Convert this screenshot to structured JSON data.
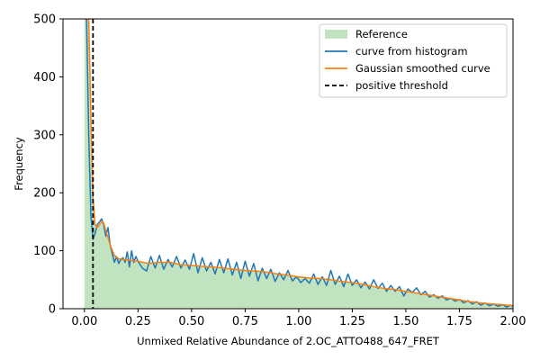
{
  "chart_data": {
    "type": "area",
    "xlabel": "Unmixed Relative Abundance of 2.OC_ATTO488_647_FRET",
    "ylabel": "Frequency",
    "xlim": [
      -0.1,
      2.0
    ],
    "ylim": [
      0,
      500
    ],
    "xticks": [
      0.0,
      0.25,
      0.5,
      0.75,
      1.0,
      1.25,
      1.5,
      1.75,
      2.0
    ],
    "xtick_labels": [
      "0.00",
      "0.25",
      "0.50",
      "0.75",
      "1.00",
      "1.25",
      "1.50",
      "1.75",
      "2.00"
    ],
    "yticks": [
      0,
      100,
      200,
      300,
      400,
      500
    ],
    "ytick_labels": [
      "0",
      "100",
      "200",
      "300",
      "400",
      "500"
    ],
    "grid": false,
    "legend_position": "top-right",
    "threshold": 0.04,
    "series": [
      {
        "name": "Reference",
        "kind": "area",
        "color": "#c2e3c0",
        "x": [
          0.0,
          0.01,
          0.02,
          0.03,
          0.04,
          0.05,
          0.06,
          0.07,
          0.08,
          0.09,
          0.1,
          0.12,
          0.14,
          0.16,
          0.18,
          0.2,
          0.22,
          0.25,
          0.3,
          0.35,
          0.4,
          0.45,
          0.5,
          0.55,
          0.6,
          0.65,
          0.7,
          0.75,
          0.8,
          0.85,
          0.9,
          0.95,
          1.0,
          1.05,
          1.1,
          1.15,
          1.2,
          1.25,
          1.3,
          1.35,
          1.4,
          1.45,
          1.5,
          1.55,
          1.6,
          1.65,
          1.7,
          1.75,
          1.8,
          1.85,
          1.9,
          1.95,
          2.0
        ],
        "y": [
          500,
          500,
          500,
          330,
          190,
          145,
          140,
          145,
          150,
          148,
          135,
          110,
          92,
          86,
          85,
          84,
          83,
          82,
          78,
          80,
          80,
          76,
          75,
          73,
          72,
          70,
          68,
          66,
          65,
          63,
          60,
          58,
          55,
          53,
          52,
          50,
          47,
          45,
          42,
          38,
          35,
          33,
          30,
          27,
          24,
          21,
          18,
          15,
          12,
          10,
          8,
          7,
          5
        ]
      },
      {
        "name": "curve from histogram",
        "kind": "line",
        "color": "#1f77b4",
        "x": [
          0.0,
          0.01,
          0.02,
          0.03,
          0.04,
          0.05,
          0.06,
          0.07,
          0.08,
          0.09,
          0.1,
          0.11,
          0.12,
          0.13,
          0.14,
          0.15,
          0.16,
          0.17,
          0.18,
          0.19,
          0.2,
          0.21,
          0.22,
          0.23,
          0.24,
          0.25,
          0.27,
          0.29,
          0.31,
          0.33,
          0.35,
          0.37,
          0.39,
          0.41,
          0.43,
          0.45,
          0.47,
          0.49,
          0.51,
          0.53,
          0.55,
          0.57,
          0.59,
          0.61,
          0.63,
          0.65,
          0.67,
          0.69,
          0.71,
          0.73,
          0.75,
          0.77,
          0.79,
          0.81,
          0.83,
          0.85,
          0.87,
          0.89,
          0.91,
          0.93,
          0.95,
          0.97,
          0.99,
          1.01,
          1.03,
          1.05,
          1.07,
          1.09,
          1.11,
          1.13,
          1.15,
          1.17,
          1.19,
          1.21,
          1.23,
          1.25,
          1.27,
          1.29,
          1.31,
          1.33,
          1.35,
          1.37,
          1.39,
          1.41,
          1.43,
          1.45,
          1.47,
          1.49,
          1.51,
          1.53,
          1.55,
          1.57,
          1.59,
          1.61,
          1.63,
          1.65,
          1.67,
          1.69,
          1.71,
          1.73,
          1.75,
          1.77,
          1.79,
          1.81,
          1.83,
          1.85,
          1.87,
          1.89,
          1.91,
          1.93,
          1.95,
          1.97,
          1.99,
          2.0
        ],
        "y": [
          500,
          500,
          300,
          160,
          120,
          130,
          145,
          150,
          155,
          145,
          125,
          140,
          110,
          95,
          80,
          90,
          78,
          85,
          88,
          80,
          98,
          72,
          100,
          80,
          90,
          82,
          70,
          65,
          90,
          70,
          92,
          68,
          85,
          72,
          90,
          70,
          84,
          68,
          95,
          62,
          88,
          65,
          80,
          60,
          85,
          62,
          86,
          58,
          80,
          52,
          82,
          56,
          78,
          48,
          70,
          52,
          68,
          47,
          62,
          50,
          66,
          48,
          55,
          45,
          52,
          44,
          60,
          42,
          55,
          40,
          66,
          42,
          56,
          38,
          60,
          40,
          50,
          36,
          46,
          34,
          50,
          35,
          44,
          30,
          40,
          30,
          38,
          22,
          34,
          28,
          36,
          24,
          30,
          20,
          24,
          18,
          22,
          15,
          18,
          13,
          16,
          10,
          14,
          8,
          12,
          6,
          10,
          5,
          8,
          4,
          7,
          3,
          6,
          3
        ]
      },
      {
        "name": "Gaussian smoothed curve",
        "kind": "line",
        "color": "#ff7f0e",
        "x": [
          0.0,
          0.01,
          0.02,
          0.03,
          0.04,
          0.05,
          0.06,
          0.07,
          0.08,
          0.09,
          0.1,
          0.12,
          0.14,
          0.16,
          0.18,
          0.2,
          0.22,
          0.25,
          0.3,
          0.35,
          0.4,
          0.45,
          0.5,
          0.55,
          0.6,
          0.65,
          0.7,
          0.75,
          0.8,
          0.85,
          0.9,
          0.95,
          1.0,
          1.05,
          1.1,
          1.15,
          1.2,
          1.25,
          1.3,
          1.35,
          1.4,
          1.45,
          1.5,
          1.55,
          1.6,
          1.65,
          1.7,
          1.75,
          1.8,
          1.85,
          1.9,
          1.95,
          2.0
        ],
        "y": [
          500,
          500,
          500,
          330,
          190,
          145,
          140,
          145,
          150,
          148,
          135,
          110,
          92,
          86,
          85,
          84,
          83,
          82,
          78,
          80,
          80,
          76,
          75,
          73,
          72,
          70,
          68,
          66,
          65,
          63,
          60,
          58,
          55,
          53,
          52,
          50,
          47,
          45,
          42,
          38,
          35,
          33,
          30,
          27,
          24,
          21,
          18,
          15,
          12,
          10,
          8,
          7,
          5
        ]
      },
      {
        "name": "positive threshold",
        "kind": "vline",
        "color": "#000000",
        "x": 0.04
      }
    ]
  }
}
